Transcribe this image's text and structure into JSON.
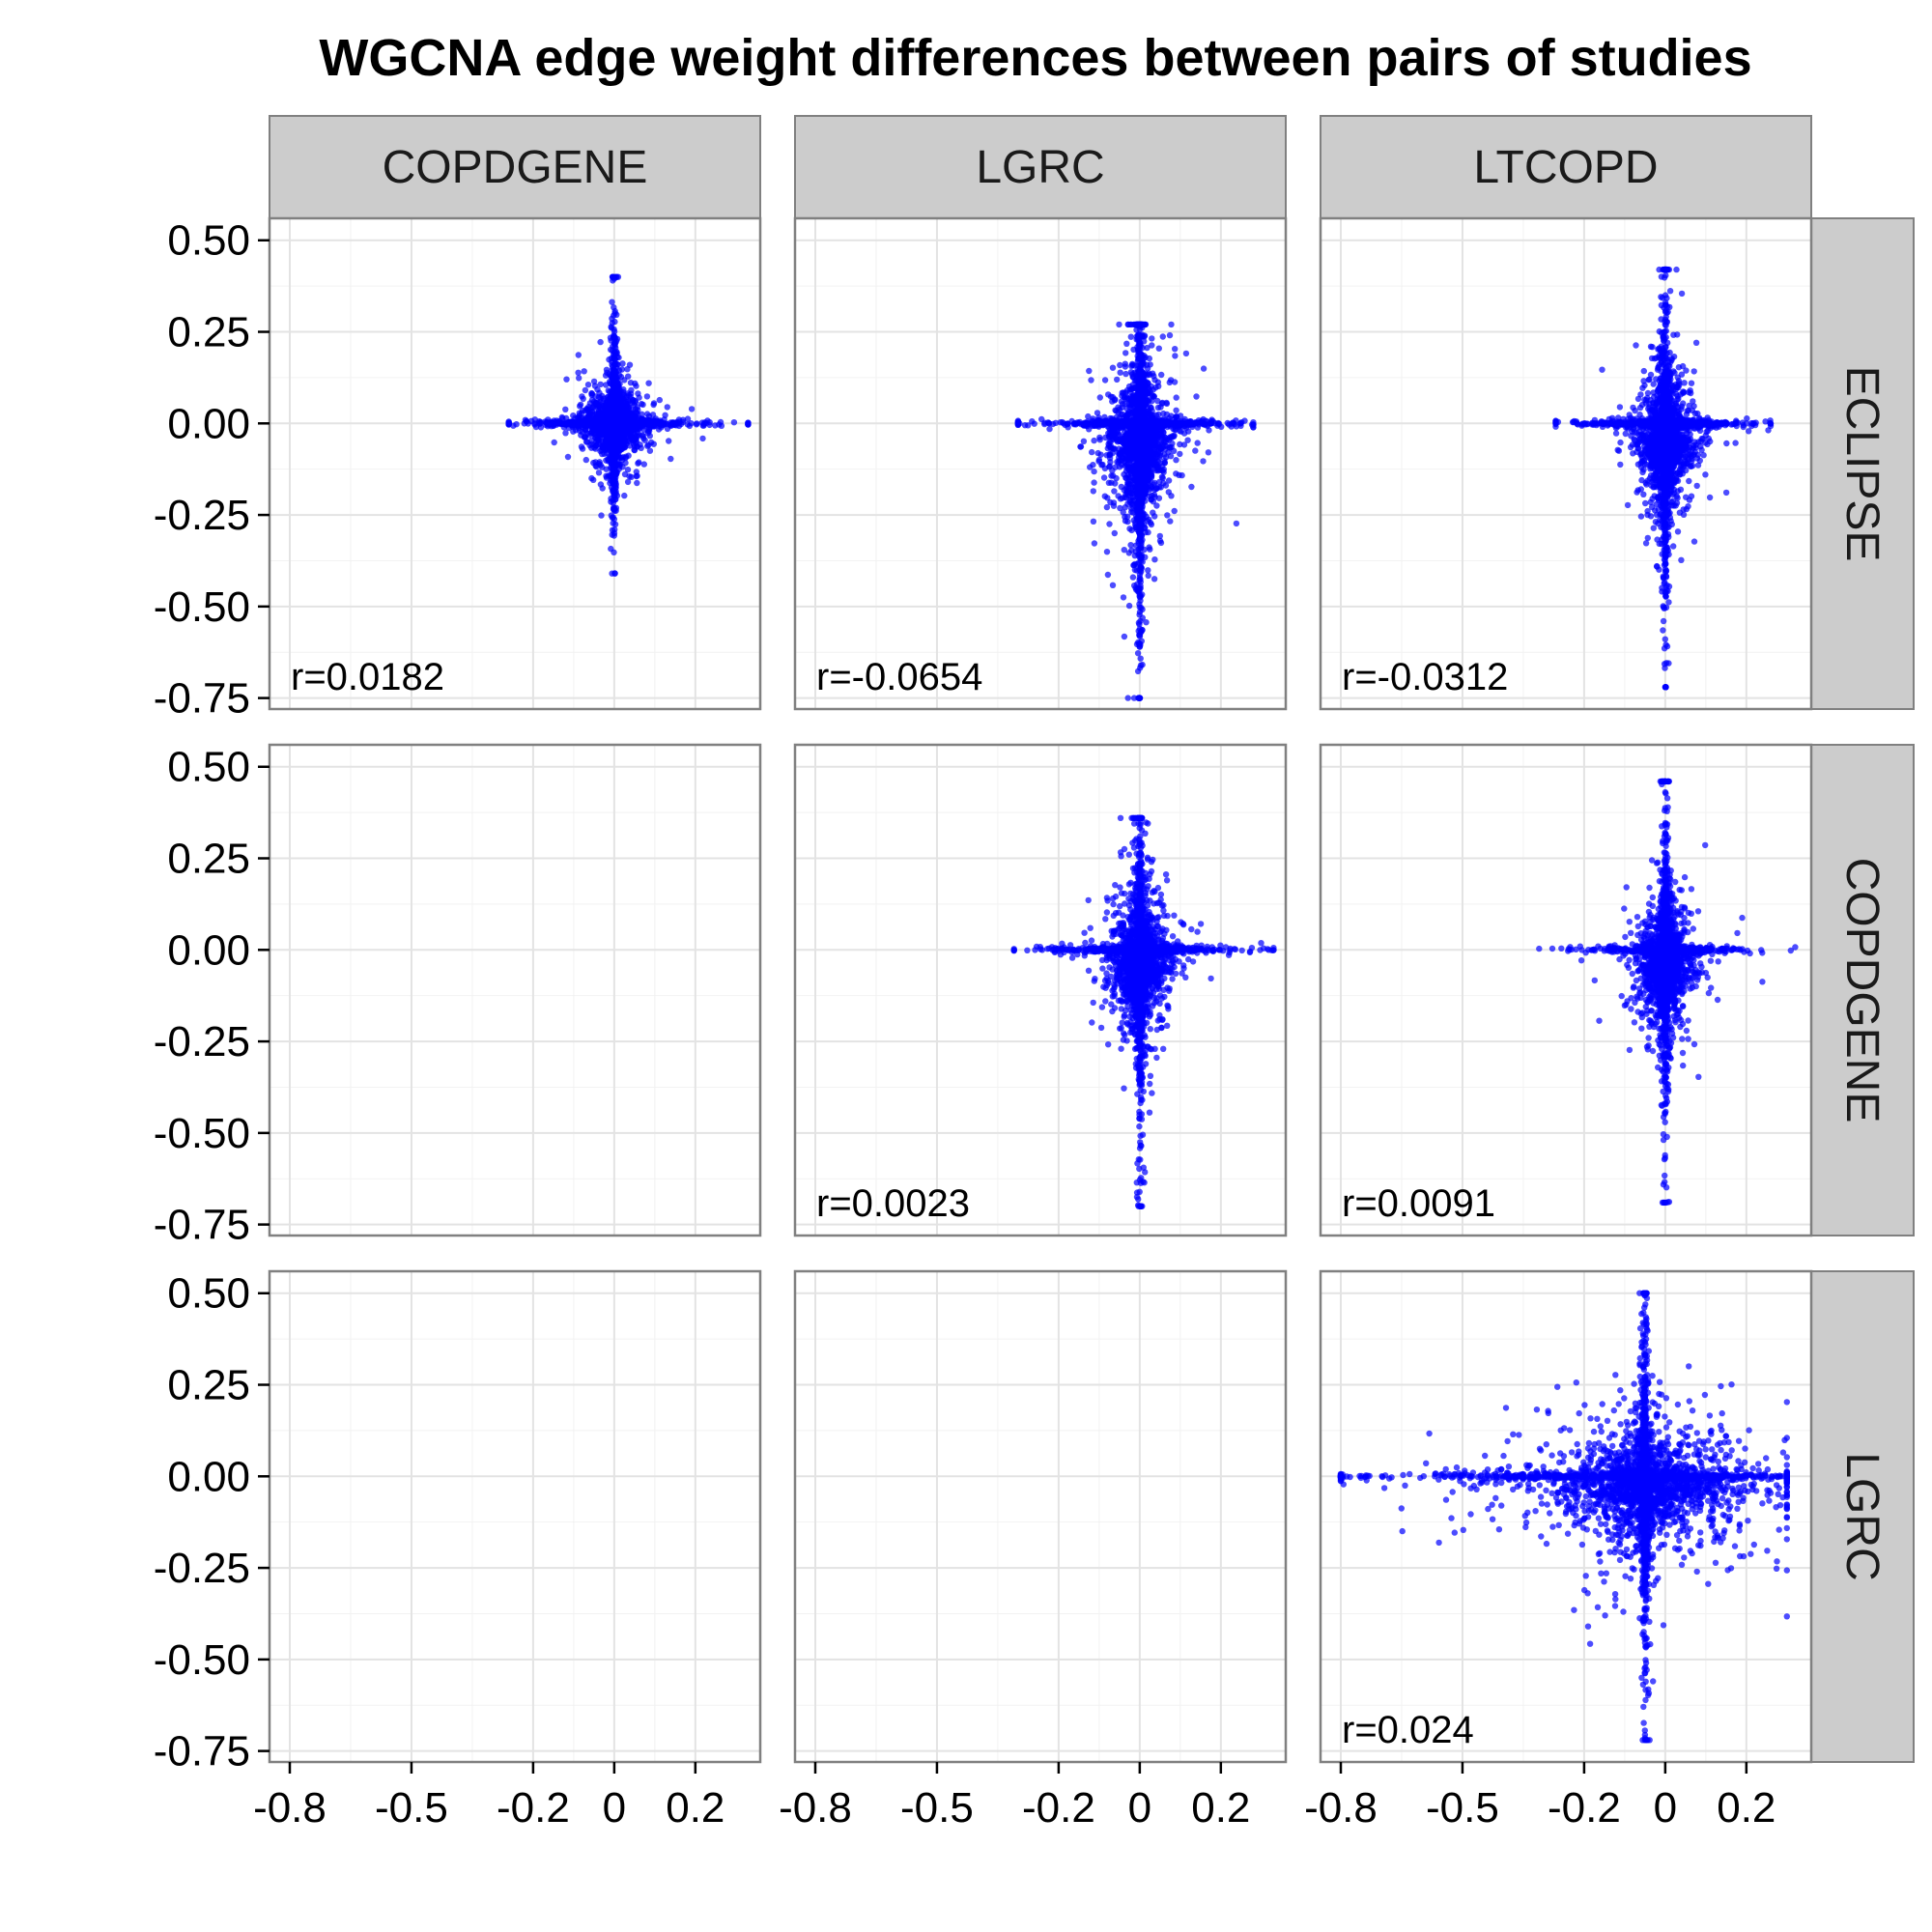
{
  "chart_data": {
    "type": "scatter",
    "title": "WGCNA edge weight differences between pairs of studies",
    "xlabel": "",
    "ylabel": "",
    "column_facets": [
      "COPDGENE",
      "LGRC",
      "LTCOPD"
    ],
    "row_facets": [
      "ECLIPSE",
      "COPDGENE",
      "LGRC"
    ],
    "x_ticks": [
      -0.8,
      -0.5,
      -0.2,
      0,
      0.2
    ],
    "x_tick_labels": [
      "-0.8",
      "-0.5",
      "-0.2",
      "0",
      "0.2"
    ],
    "y_ticks": [
      0.5,
      0.25,
      0,
      -0.25,
      -0.5,
      -0.75
    ],
    "y_tick_labels": [
      "0.50",
      "0.25",
      "0.00",
      "-0.25",
      "-0.50",
      "-0.75"
    ],
    "xlim": [
      -0.85,
      0.36
    ],
    "ylim": [
      -0.78,
      0.56
    ],
    "grid": true,
    "point_color": "#0000ff",
    "panels": [
      {
        "row": "ECLIPSE",
        "col": "COPDGENE",
        "annotation": "r=0.0182",
        "has_data": true,
        "n_points": 2600,
        "x_center": 0.0,
        "x_spread": 0.05,
        "x_range": [
          -0.26,
          0.33
        ],
        "y_center": 0.0,
        "y_spread": 0.07,
        "y_range": [
          -0.41,
          0.4
        ]
      },
      {
        "row": "ECLIPSE",
        "col": "LGRC",
        "annotation": "r=-0.0654",
        "has_data": true,
        "n_points": 2800,
        "x_center": 0.0,
        "x_spread": 0.05,
        "x_range": [
          -0.3,
          0.28
        ],
        "y_center": -0.05,
        "y_spread": 0.16,
        "y_range": [
          -0.75,
          0.27
        ]
      },
      {
        "row": "ECLIPSE",
        "col": "LTCOPD",
        "annotation": "r=-0.0312",
        "has_data": true,
        "n_points": 2800,
        "x_center": 0.0,
        "x_spread": 0.04,
        "x_range": [
          -0.27,
          0.26
        ],
        "y_center": -0.05,
        "y_spread": 0.13,
        "y_range": [
          -0.72,
          0.42
        ]
      },
      {
        "row": "COPDGENE",
        "col": "COPDGENE",
        "annotation": "",
        "has_data": false
      },
      {
        "row": "COPDGENE",
        "col": "LGRC",
        "annotation": "r=0.0023",
        "has_data": true,
        "n_points": 2600,
        "x_center": 0.0,
        "x_spread": 0.05,
        "x_range": [
          -0.31,
          0.33
        ],
        "y_center": -0.04,
        "y_spread": 0.14,
        "y_range": [
          -0.7,
          0.36
        ]
      },
      {
        "row": "COPDGENE",
        "col": "LTCOPD",
        "annotation": "r=0.0091",
        "has_data": true,
        "n_points": 2600,
        "x_center": 0.0,
        "x_spread": 0.04,
        "x_range": [
          -0.38,
          0.33
        ],
        "y_center": -0.04,
        "y_spread": 0.12,
        "y_range": [
          -0.69,
          0.46
        ]
      },
      {
        "row": "LGRC",
        "col": "COPDGENE",
        "annotation": "",
        "has_data": false
      },
      {
        "row": "LGRC",
        "col": "LGRC",
        "annotation": "",
        "has_data": false
      },
      {
        "row": "LGRC",
        "col": "LTCOPD",
        "annotation": "r=0.024",
        "has_data": true,
        "n_points": 3200,
        "x_center": -0.05,
        "x_spread": 0.18,
        "x_range": [
          -0.8,
          0.3
        ],
        "y_center": -0.03,
        "y_spread": 0.12,
        "y_range": [
          -0.72,
          0.5
        ]
      }
    ]
  }
}
